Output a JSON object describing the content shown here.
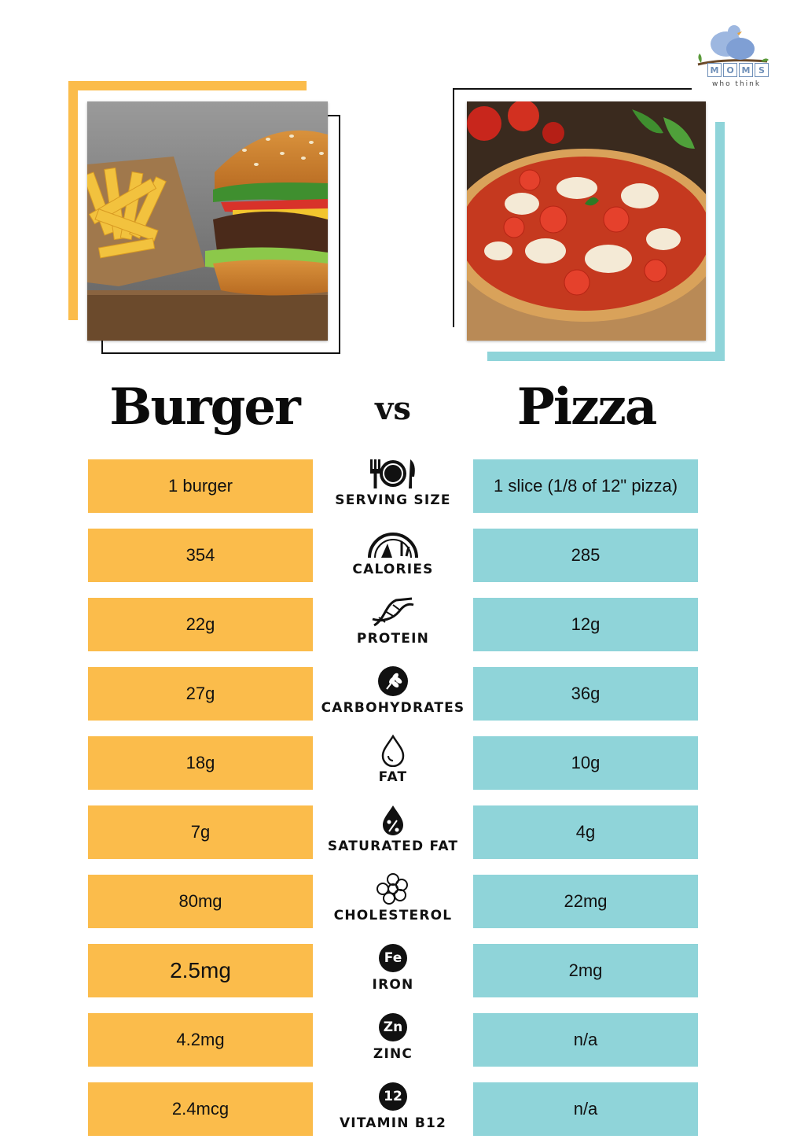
{
  "brand": {
    "blocks": [
      "M",
      "O",
      "M",
      "S"
    ],
    "tagline": "who think"
  },
  "left_title": "Burger",
  "vs": "vs",
  "right_title": "Pizza",
  "colors": {
    "left": "#fbbc4b",
    "right": "#8fd4d9"
  },
  "rows": [
    {
      "label": "SERVING SIZE",
      "icon": "utensils-plate-icon",
      "burger": "1 burger",
      "pizza": "1 slice (1/8 of 12\" pizza)"
    },
    {
      "label": "CALORIES",
      "icon": "gauge-icon",
      "burger": "354",
      "pizza": "285"
    },
    {
      "label": "PROTEIN",
      "icon": "dna-icon",
      "burger": "22g",
      "pizza": "12g"
    },
    {
      "label": "CARBOHYDRATES",
      "icon": "wheat-icon",
      "burger": "27g",
      "pizza": "36g"
    },
    {
      "label": "FAT",
      "icon": "drop-icon",
      "burger": "18g",
      "pizza": "10g"
    },
    {
      "label": "SATURATED FAT",
      "icon": "percent-drop-icon",
      "burger": "7g",
      "pizza": "4g"
    },
    {
      "label": "CHOLESTEROL",
      "icon": "cholesterol-icon",
      "burger": "80mg",
      "pizza": "22mg"
    },
    {
      "label": "IRON",
      "icon": "iron-icon",
      "icon_text": "Fe",
      "burger": "2.5mg",
      "pizza": "2mg"
    },
    {
      "label": "ZINC",
      "icon": "zinc-icon",
      "icon_text": "Zn",
      "burger": "4.2mg",
      "pizza": "n/a"
    },
    {
      "label": "VITAMIN B12",
      "icon": "b12-icon",
      "icon_text": "12",
      "burger": "2.4mcg",
      "pizza": "n/a"
    }
  ]
}
